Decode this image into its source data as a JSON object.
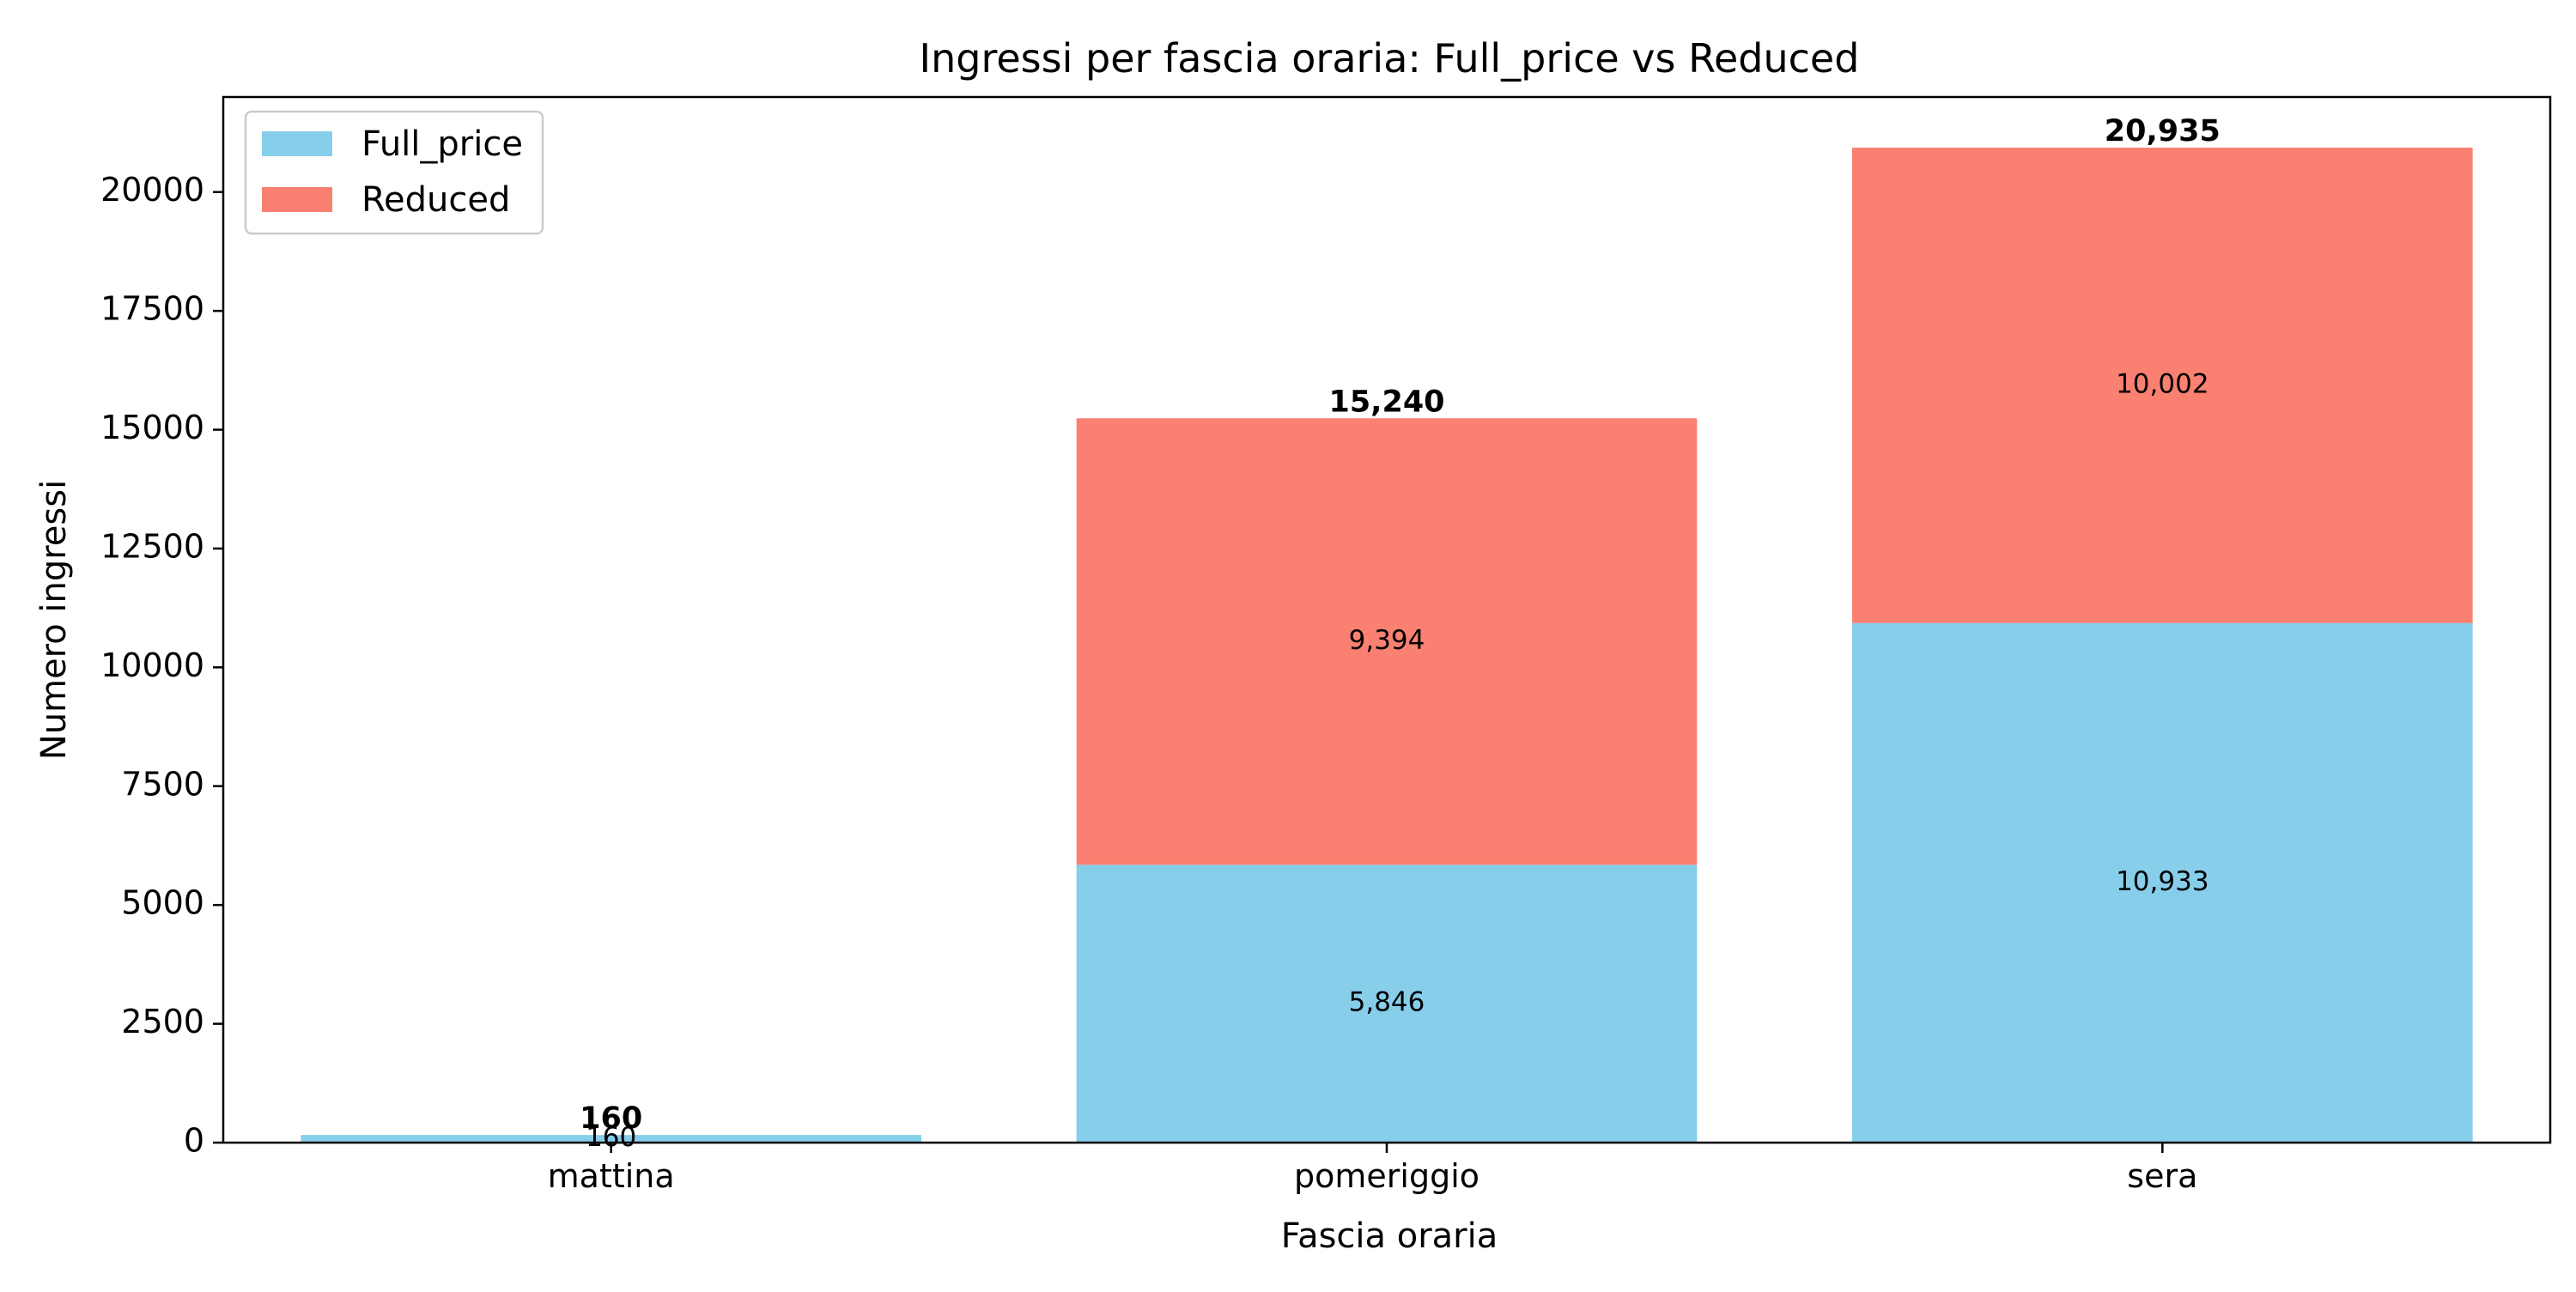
{
  "chart_data": {
    "type": "bar",
    "stacked": true,
    "title": "Ingressi per fascia oraria: Full_price vs Reduced",
    "xlabel": "Fascia oraria",
    "ylabel": "Numero ingressi",
    "categories": [
      "mattina",
      "pomeriggio",
      "sera"
    ],
    "series": [
      {
        "name": "Full_price",
        "color": "#87CEEB",
        "values": [
          160,
          5846,
          10933
        ],
        "labels": [
          "160",
          "5,846",
          "10,933"
        ]
      },
      {
        "name": "Reduced",
        "color": "#FA8072",
        "values": [
          0,
          9394,
          10002
        ],
        "labels": [
          "",
          "9,394",
          "10,002"
        ]
      }
    ],
    "totals": [
      "160",
      "15,240",
      "20,935"
    ],
    "ylim": [
      0,
      22000
    ],
    "yticks": [
      0,
      2500,
      5000,
      7500,
      10000,
      12500,
      15000,
      17500,
      20000
    ],
    "ytick_labels": [
      "0",
      "2500",
      "5000",
      "7500",
      "10000",
      "12500",
      "15000",
      "17500",
      "20000"
    ],
    "grid": false,
    "legend_position": "top-left"
  }
}
